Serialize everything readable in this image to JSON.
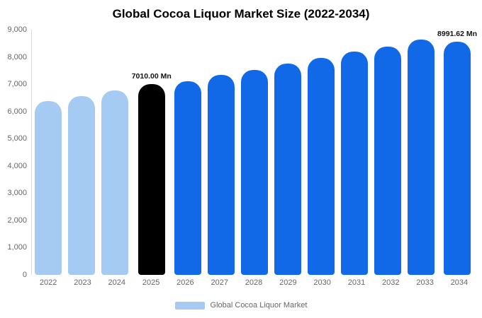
{
  "chart_data": {
    "type": "bar",
    "title": "Global Cocoa Liquor Market Size (2022-2034)",
    "categories": [
      "2022",
      "2023",
      "2024",
      "2025",
      "2026",
      "2027",
      "2028",
      "2029",
      "2030",
      "2031",
      "2032",
      "2033",
      "2034"
    ],
    "values": [
      6380,
      6560,
      6760,
      7010.0,
      7120,
      7340,
      7530,
      7760,
      7970,
      8200,
      8390,
      8650,
      8991.62
    ],
    "bar_labels": [
      "",
      "",
      "",
      "7010.00 Mn",
      "",
      "",
      "",
      "",
      "",
      "",
      "",
      "",
      "8991.62 Mn"
    ],
    "bar_colors": [
      "#a6cbf3",
      "#a6cbf3",
      "#a6cbf3",
      "#000000",
      "#1269e8",
      "#1269e8",
      "#1269e8",
      "#1269e8",
      "#1269e8",
      "#1269e8",
      "#1269e8",
      "#1269e8",
      "#1269e8"
    ],
    "xlabel": "",
    "ylabel": "",
    "ylim": [
      0,
      9000
    ],
    "ytick_step": 1000,
    "yticks": [
      "0",
      "1,000",
      "2,000",
      "3,000",
      "4,000",
      "5,000",
      "6,000",
      "7,000",
      "8,000",
      "9,000"
    ],
    "grid": false,
    "legend": {
      "position": "bottom",
      "label": "Global Cocoa Liquor Market",
      "swatch_color": "#a6cbf3"
    }
  }
}
